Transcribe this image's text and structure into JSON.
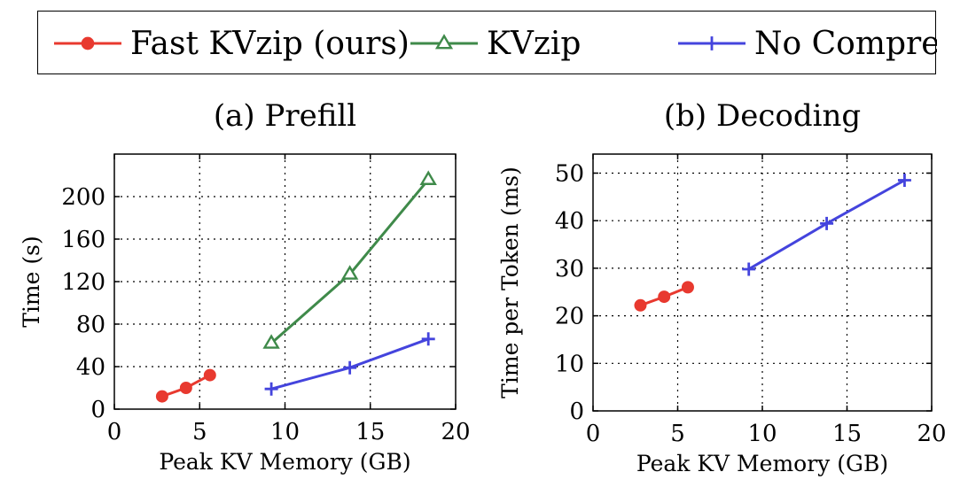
{
  "legend": [
    {
      "name": "Fast KVzip (ours)",
      "color": "#e8392f",
      "marker": "circle"
    },
    {
      "name": "KVzip",
      "color": "#3f8a4a",
      "marker": "triangle"
    },
    {
      "name": "No Compression",
      "color": "#4444dd",
      "marker": "plus"
    }
  ],
  "chart_data": [
    {
      "type": "line",
      "title": "(a) Prefill",
      "xlabel": "Peak KV Memory (GB)",
      "ylabel": "Time (s)",
      "xlim": [
        0,
        20
      ],
      "ylim": [
        0,
        240
      ],
      "xticks": [
        0,
        5,
        10,
        15,
        20
      ],
      "yticks": [
        0,
        40,
        80,
        120,
        160,
        200
      ],
      "grid": true,
      "series": [
        {
          "name": "Fast KVzip (ours)",
          "color": "#e8392f",
          "marker": "circle",
          "x": [
            2.8,
            4.2,
            5.6
          ],
          "y": [
            12,
            20,
            32
          ]
        },
        {
          "name": "KVzip",
          "color": "#3f8a4a",
          "marker": "triangle",
          "x": [
            9.2,
            13.8,
            18.4
          ],
          "y": [
            62,
            127,
            216
          ]
        },
        {
          "name": "No Compression",
          "color": "#4444dd",
          "marker": "plus",
          "x": [
            9.2,
            13.8,
            18.4
          ],
          "y": [
            19,
            39,
            66
          ]
        }
      ]
    },
    {
      "type": "line",
      "title": "(b) Decoding",
      "xlabel": "Peak KV Memory (GB)",
      "ylabel": "Time per Token (ms)",
      "xlim": [
        0,
        20
      ],
      "ylim": [
        0,
        54
      ],
      "xticks": [
        0,
        5,
        10,
        15,
        20
      ],
      "yticks": [
        0,
        10,
        20,
        30,
        40,
        50
      ],
      "grid": true,
      "series": [
        {
          "name": "Fast KVzip (ours)",
          "color": "#e8392f",
          "marker": "circle",
          "x": [
            2.8,
            4.2,
            5.6
          ],
          "y": [
            22.2,
            24.0,
            26.0
          ]
        },
        {
          "name": "No Compression",
          "color": "#4444dd",
          "marker": "plus",
          "x": [
            9.2,
            13.8,
            18.4
          ],
          "y": [
            29.8,
            39.4,
            48.5
          ]
        }
      ]
    }
  ]
}
